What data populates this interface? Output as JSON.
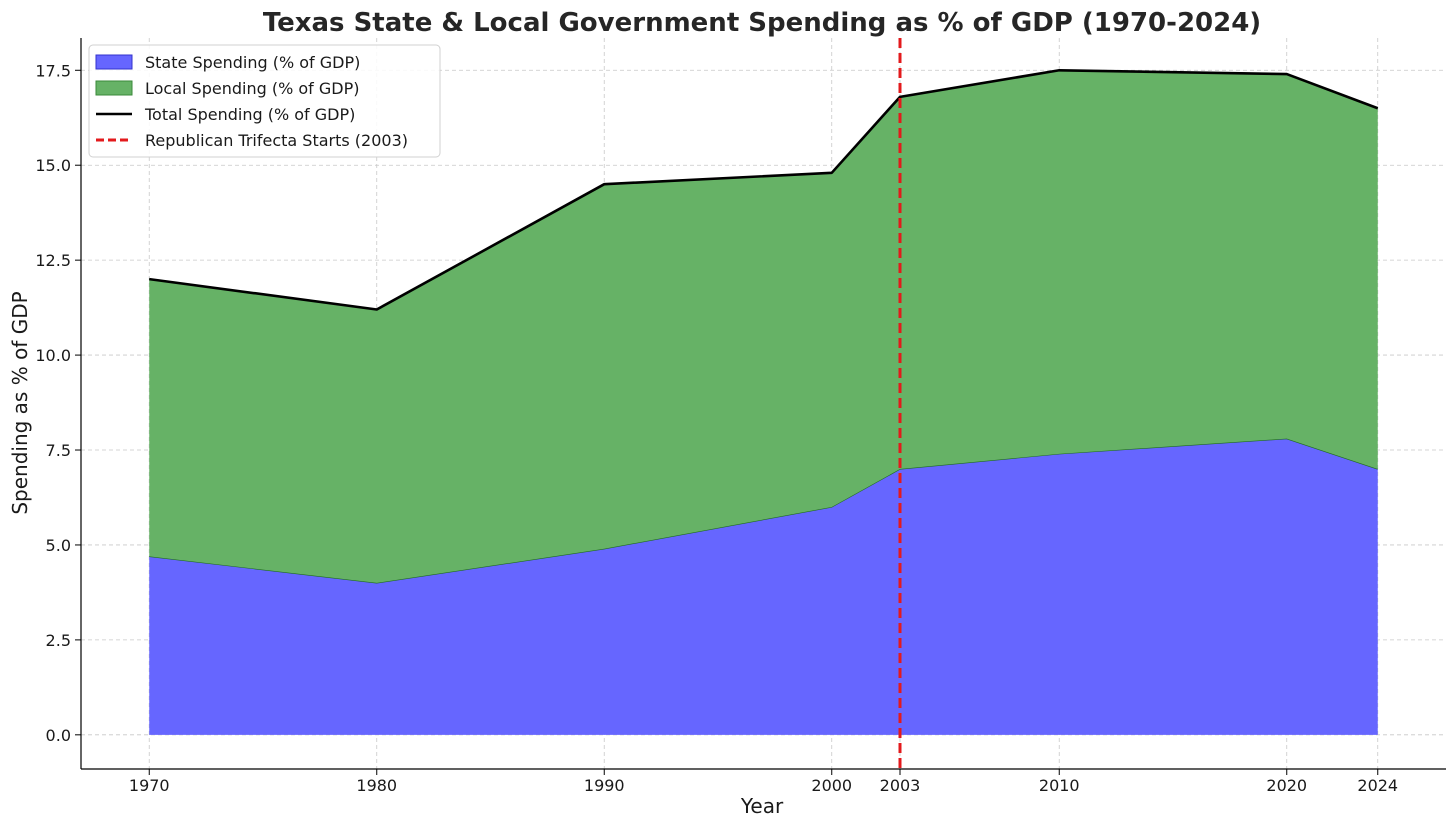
{
  "chart_data": {
    "type": "area",
    "title": "Texas State & Local Government Spending as % of GDP (1970-2024)",
    "xlabel": "Year",
    "ylabel": "Spending as % of GDP",
    "x": [
      1970,
      1980,
      1990,
      2000,
      2003,
      2010,
      2020,
      2024
    ],
    "x_ticks": [
      "1970",
      "1980",
      "1990",
      "2000",
      "2003",
      "2010",
      "2020",
      "2024"
    ],
    "xlim": [
      1967,
      2027
    ],
    "ylim": [
      -0.9,
      18.35
    ],
    "y_ticks": [
      "0.0",
      "2.5",
      "5.0",
      "7.5",
      "10.0",
      "12.5",
      "15.0",
      "17.5"
    ],
    "y_tick_values": [
      0,
      2.5,
      5,
      7.5,
      10,
      12.5,
      15,
      17.5
    ],
    "stacked": true,
    "series": [
      {
        "name": "State Spending (% of GDP)",
        "kind": "area",
        "color": "#6666ff",
        "values": [
          4.7,
          4.0,
          4.9,
          6.0,
          7.0,
          7.4,
          7.8,
          7.0
        ]
      },
      {
        "name": "Local Spending (% of GDP)",
        "kind": "area",
        "color": "#66b266",
        "values": [
          7.3,
          7.2,
          9.6,
          8.8,
          9.8,
          10.1,
          9.6,
          9.5
        ]
      },
      {
        "name": "Total Spending (% of GDP)",
        "kind": "line",
        "color": "#000000",
        "values": [
          12.0,
          11.2,
          14.5,
          14.8,
          16.8,
          17.5,
          17.4,
          16.5
        ]
      }
    ],
    "reference_line": {
      "name": "Republican Trifecta Starts (2003)",
      "x": 2003,
      "color": "#e31a1c",
      "style": "dashed"
    },
    "grid": true,
    "legend_position": "top-left"
  }
}
